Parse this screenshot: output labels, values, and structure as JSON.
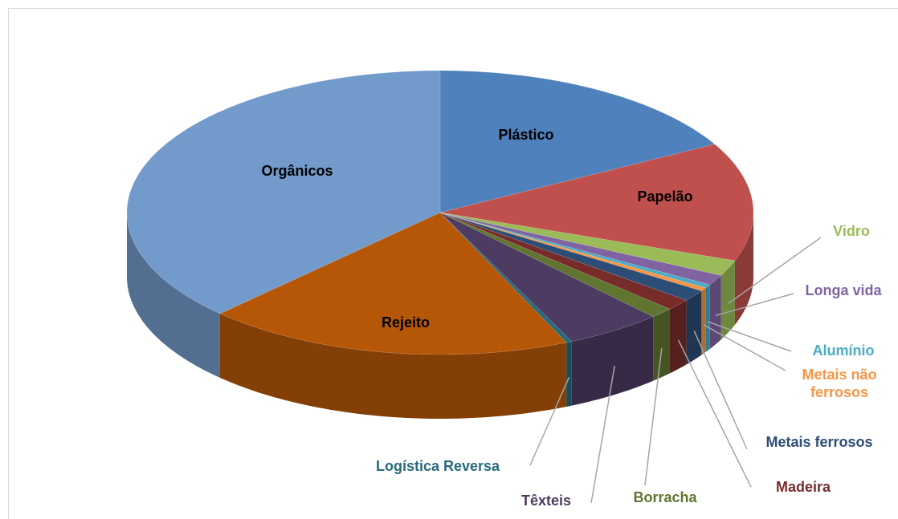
{
  "chart_data": {
    "type": "pie3d",
    "categories": [
      "Plástico",
      "Papelão",
      "Vidro",
      "Longa vida",
      "Alumínio",
      "Metais não ferrosos",
      "Metais ferrosos",
      "Madeira",
      "Borracha",
      "Têxteis",
      "Logística Reversa",
      "Rejeito",
      "Orgânicos"
    ],
    "values": [
      17,
      13.5,
      1.8,
      1.2,
      0.4,
      0.4,
      1.3,
      1.3,
      1.2,
      5,
      0.3,
      19,
      37.6
    ],
    "colors": [
      "#4f81bd",
      "#c0504d",
      "#9bbb59",
      "#8064a2",
      "#4bacc6",
      "#f79646",
      "#2c4d75",
      "#772c2a",
      "#5f7530",
      "#4d3b62",
      "#276a7c",
      "#b65708",
      "#729aca"
    ]
  }
}
